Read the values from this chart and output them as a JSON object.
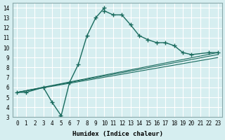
{
  "xlabel": "Humidex (Indice chaleur)",
  "background_color": "#d6eef0",
  "grid_color": "#ffffff",
  "line_color": "#1a6b5e",
  "xlim": [
    -0.5,
    23.5
  ],
  "ylim": [
    3,
    14.5
  ],
  "xticks": [
    0,
    1,
    2,
    3,
    4,
    5,
    6,
    7,
    8,
    9,
    10,
    11,
    12,
    13,
    14,
    15,
    16,
    17,
    18,
    19,
    20,
    21,
    22,
    23
  ],
  "yticks": [
    3,
    4,
    5,
    6,
    7,
    8,
    9,
    10,
    11,
    12,
    13,
    14
  ],
  "line1_x": [
    0,
    1,
    3,
    4,
    5,
    5,
    6,
    7,
    8,
    9,
    10,
    10,
    11,
    12,
    13,
    14,
    15,
    16,
    17,
    18,
    19,
    20,
    22,
    23
  ],
  "line1_y": [
    5.5,
    5.5,
    6.0,
    4.5,
    3.2,
    3.0,
    6.5,
    8.3,
    11.2,
    13.0,
    14.0,
    13.7,
    13.3,
    13.3,
    12.3,
    11.2,
    10.8,
    10.5,
    10.5,
    10.2,
    9.5,
    9.3,
    9.5,
    9.5
  ],
  "line2_x": [
    0,
    23
  ],
  "line2_y": [
    5.5,
    9.5
  ],
  "line3_x": [
    0,
    23
  ],
  "line3_y": [
    5.5,
    9.3
  ],
  "line4_x": [
    0,
    23
  ],
  "line4_y": [
    5.5,
    9.0
  ]
}
